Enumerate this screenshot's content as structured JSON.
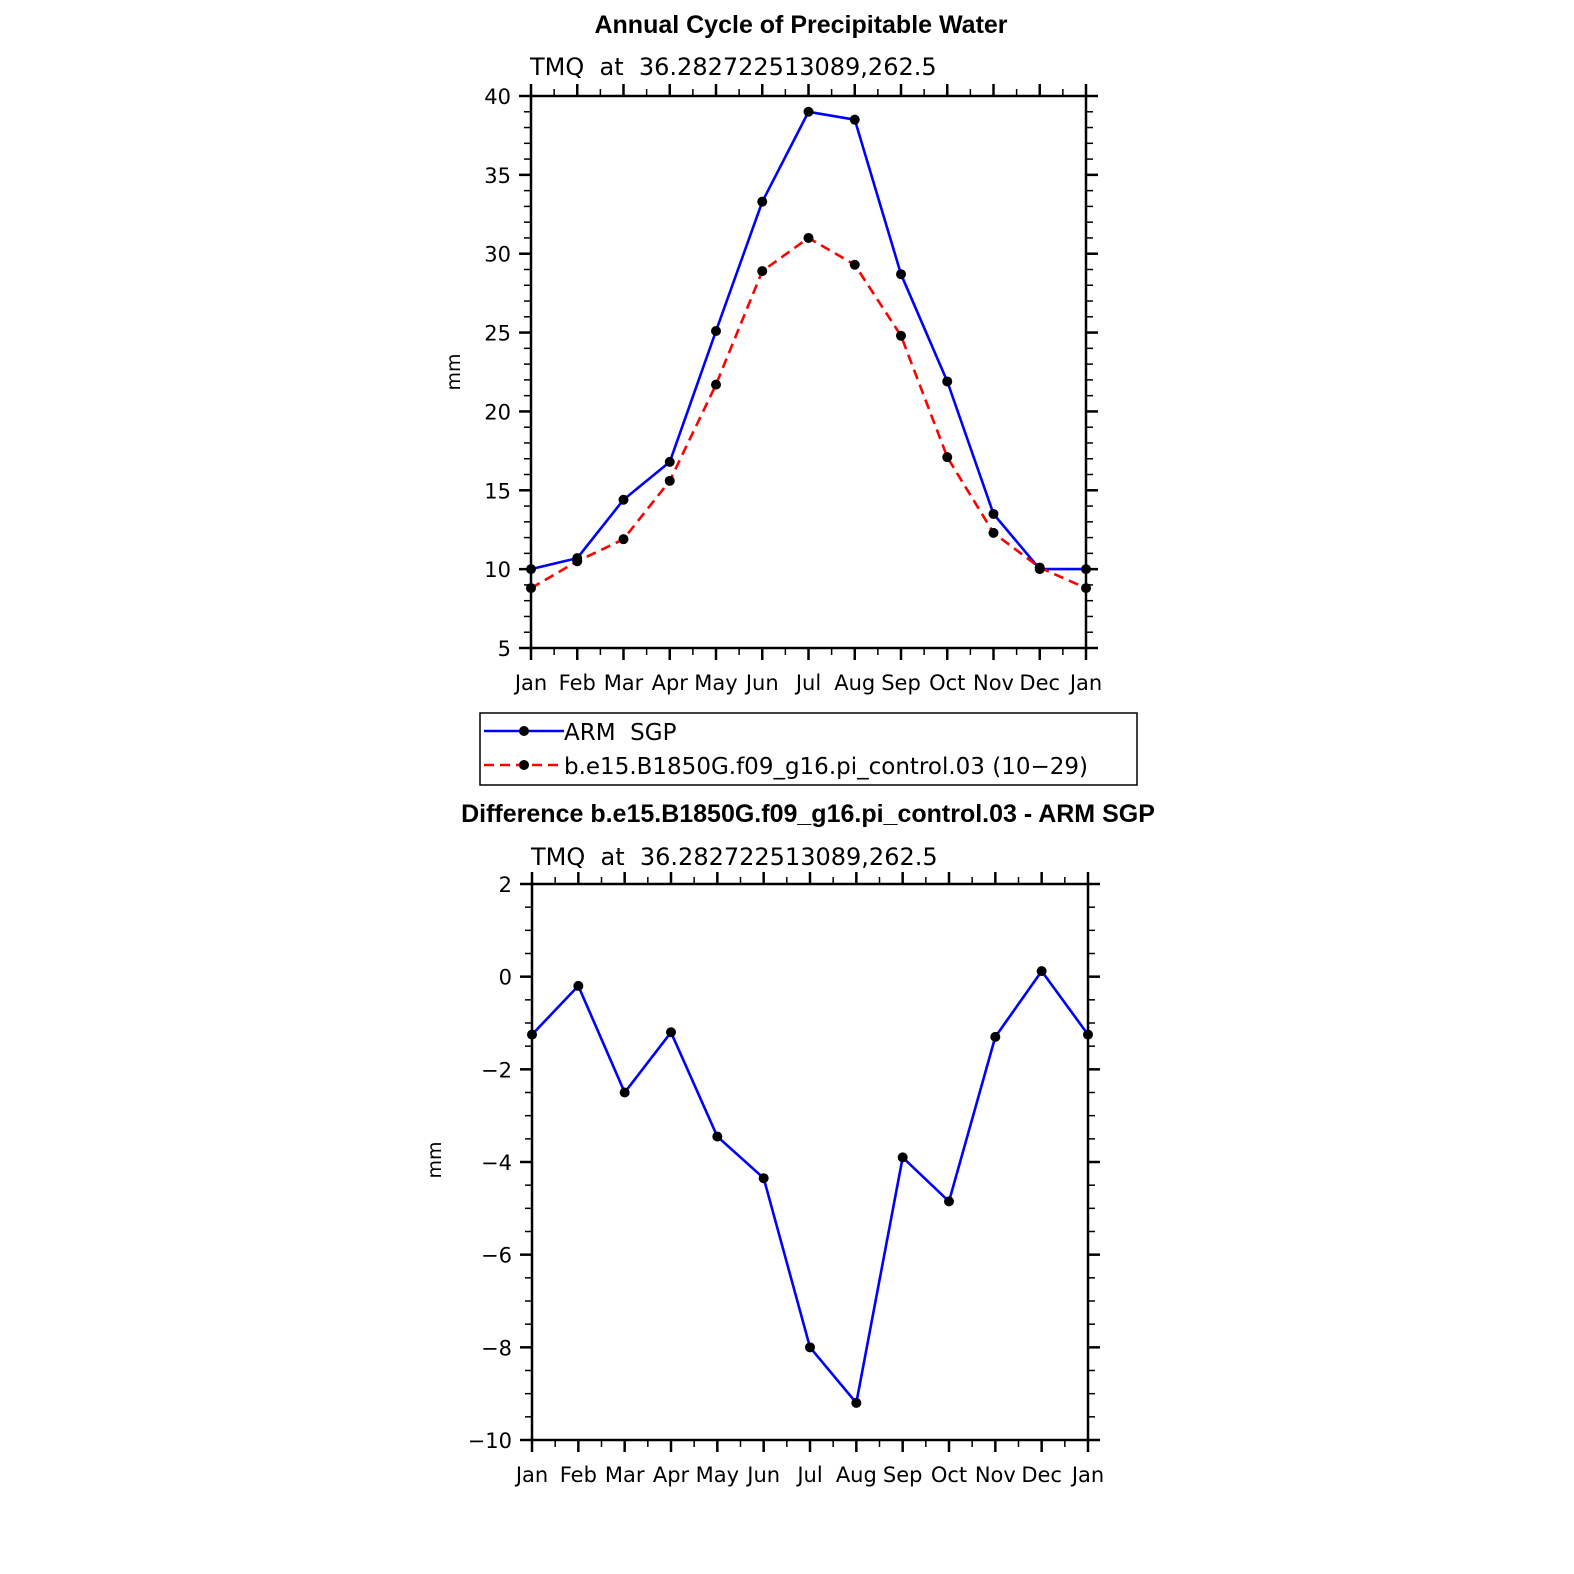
{
  "chart_data": [
    {
      "type": "line",
      "title": "Annual Cycle of Precipitable Water",
      "subtitle": "TMQ  at  36.282722513089,262.5",
      "xlabel": "",
      "ylabel": "mm",
      "categories": [
        "Jan",
        "Feb",
        "Mar",
        "Apr",
        "May",
        "Jun",
        "Jul",
        "Aug",
        "Sep",
        "Oct",
        "Nov",
        "Dec",
        "Jan"
      ],
      "ylim": [
        5,
        40
      ],
      "yticks": [
        "5",
        "10",
        "15",
        "20",
        "25",
        "30",
        "35",
        "40"
      ],
      "series": [
        {
          "name": "ARM  SGP",
          "color": "#0000ff",
          "dash": "solid",
          "values": [
            10.0,
            10.7,
            14.4,
            16.8,
            25.1,
            33.3,
            39.0,
            38.5,
            28.7,
            21.9,
            13.5,
            10.0,
            10.0
          ]
        },
        {
          "name": "b.e15.B1850G.f09_g16.pi_control.03 (10−29)",
          "color": "#ff0000",
          "dash": "dashed",
          "values": [
            8.8,
            10.5,
            11.9,
            15.6,
            21.7,
            28.9,
            31.0,
            29.3,
            24.8,
            17.1,
            12.3,
            10.1,
            8.8
          ]
        }
      ],
      "legend_position": "below"
    },
    {
      "type": "line",
      "title": "Difference b.e15.B1850G.f09_g16.pi_control.03 - ARM SGP",
      "subtitle": "TMQ  at  36.282722513089,262.5",
      "xlabel": "",
      "ylabel": "mm",
      "categories": [
        "Jan",
        "Feb",
        "Mar",
        "Apr",
        "May",
        "Jun",
        "Jul",
        "Aug",
        "Sep",
        "Oct",
        "Nov",
        "Dec",
        "Jan"
      ],
      "ylim": [
        -10,
        2
      ],
      "yticks": [
        "−10",
        "−8",
        "−6",
        "−4",
        "−2",
        "0",
        "2"
      ],
      "series": [
        {
          "color": "#0000ff",
          "dash": "solid",
          "values": [
            -1.25,
            -0.2,
            -2.5,
            -1.2,
            -3.45,
            -4.35,
            -8.0,
            -9.2,
            -3.9,
            -4.85,
            -1.3,
            0.12,
            -1.25
          ]
        }
      ]
    }
  ]
}
